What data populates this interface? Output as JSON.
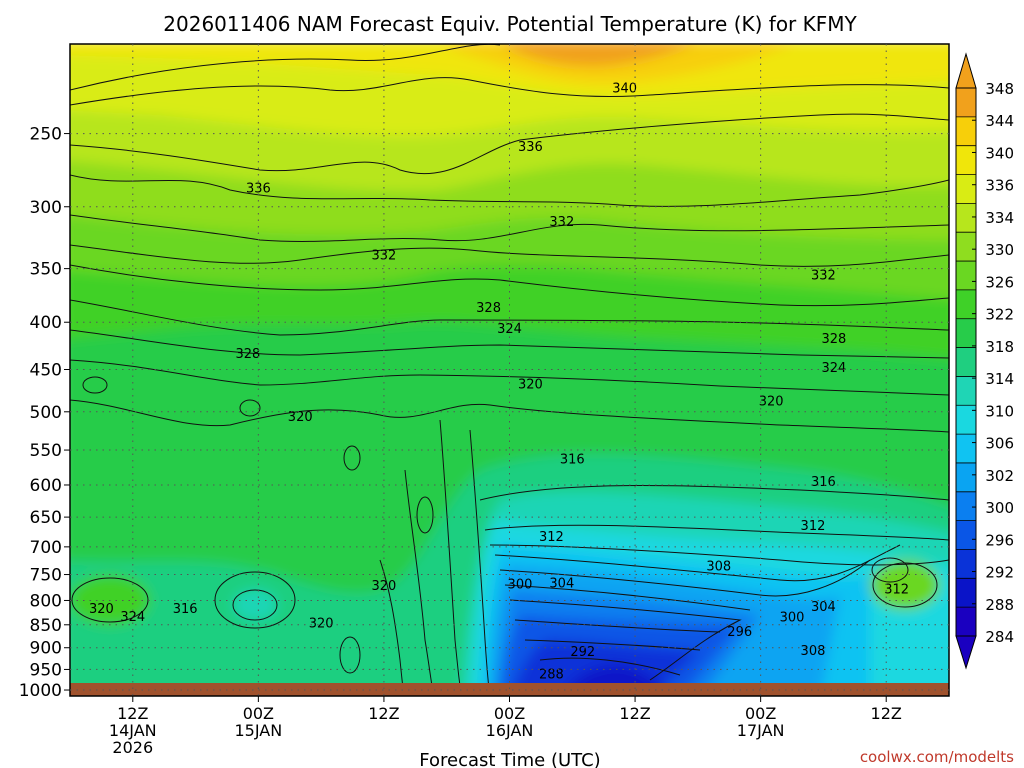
{
  "chart_data": {
    "type": "heatmap",
    "title": "2026011406 NAM Forecast Equiv. Potential Temperature (K) for KFMY",
    "xlabel": "Forecast Time (UTC)",
    "ylabel": "",
    "credit": "coolwx.com/modelts",
    "x_ticks": [
      {
        "hour": 6,
        "label": [
          "12Z",
          "14JAN",
          "2026"
        ]
      },
      {
        "hour": 18,
        "label": [
          "00Z",
          "15JAN"
        ]
      },
      {
        "hour": 30,
        "label": [
          "12Z"
        ]
      },
      {
        "hour": 42,
        "label": [
          "00Z",
          "16JAN"
        ]
      },
      {
        "hour": 54,
        "label": [
          "12Z"
        ]
      },
      {
        "hour": 66,
        "label": [
          "00Z",
          "17JAN"
        ]
      },
      {
        "hour": 78,
        "label": [
          "12Z"
        ]
      }
    ],
    "xlim_hours": [
      0,
      84
    ],
    "y_scale": "log",
    "y_unit": "hPa",
    "ylim": [
      1015,
      200
    ],
    "y_ticks": [
      250,
      300,
      350,
      400,
      450,
      500,
      550,
      600,
      650,
      700,
      750,
      800,
      850,
      900,
      950,
      1000
    ],
    "colorbar": {
      "labels": [
        348,
        344,
        340,
        336,
        334,
        330,
        326,
        322,
        318,
        314,
        310,
        306,
        302,
        300,
        296,
        292,
        288,
        284
      ],
      "colors": [
        "#f1a11c",
        "#f7cf0a",
        "#f0e60a",
        "#d9ec14",
        "#b7e61c",
        "#8fdd1f",
        "#6ad722",
        "#3fd128",
        "#27cc4a",
        "#1fcf80",
        "#1fd5b5",
        "#1ad8e0",
        "#10c3f2",
        "#0aa4f2",
        "#0b7ff0",
        "#0a56e6",
        "#0a33d8",
        "#0a14c8",
        "#1a00c0"
      ],
      "extend": "both"
    },
    "contour_interval_K": 4,
    "contour_labels": [
      {
        "value": "340",
        "hour": 53,
        "p": 223
      },
      {
        "value": "336",
        "hour": 44,
        "p": 258
      },
      {
        "value": "336",
        "hour": 18,
        "p": 286
      },
      {
        "value": "332",
        "hour": 47,
        "p": 311
      },
      {
        "value": "332",
        "hour": 30,
        "p": 338
      },
      {
        "value": "332",
        "hour": 72,
        "p": 355
      },
      {
        "value": "328",
        "hour": 40,
        "p": 385
      },
      {
        "value": "324",
        "hour": 42,
        "p": 406
      },
      {
        "value": "328",
        "hour": 17,
        "p": 432
      },
      {
        "value": "328",
        "hour": 73,
        "p": 416
      },
      {
        "value": "324",
        "hour": 73,
        "p": 447
      },
      {
        "value": "320",
        "hour": 44,
        "p": 466
      },
      {
        "value": "320",
        "hour": 67,
        "p": 486
      },
      {
        "value": "320",
        "hour": 22,
        "p": 505
      },
      {
        "value": "316",
        "hour": 48,
        "p": 562
      },
      {
        "value": "316",
        "hour": 72,
        "p": 594
      },
      {
        "value": "312",
        "hour": 71,
        "p": 663
      },
      {
        "value": "312",
        "hour": 46,
        "p": 681
      },
      {
        "value": "308",
        "hour": 62,
        "p": 733
      },
      {
        "value": "304",
        "hour": 47,
        "p": 765
      },
      {
        "value": "300",
        "hour": 43,
        "p": 767
      },
      {
        "value": "304",
        "hour": 72,
        "p": 811
      },
      {
        "value": "300",
        "hour": 69,
        "p": 833
      },
      {
        "value": "296",
        "hour": 64,
        "p": 863
      },
      {
        "value": "292",
        "hour": 49,
        "p": 907
      },
      {
        "value": "288",
        "hour": 46,
        "p": 960
      },
      {
        "value": "320",
        "hour": 30,
        "p": 770
      },
      {
        "value": "320",
        "hour": 3,
        "p": 815
      },
      {
        "value": "324",
        "hour": 6,
        "p": 832
      },
      {
        "value": "316",
        "hour": 11,
        "p": 815
      },
      {
        "value": "320",
        "hour": 24,
        "p": 845
      },
      {
        "value": "308",
        "hour": 71,
        "p": 905
      },
      {
        "value": "312",
        "hour": 79,
        "p": 777
      }
    ]
  }
}
